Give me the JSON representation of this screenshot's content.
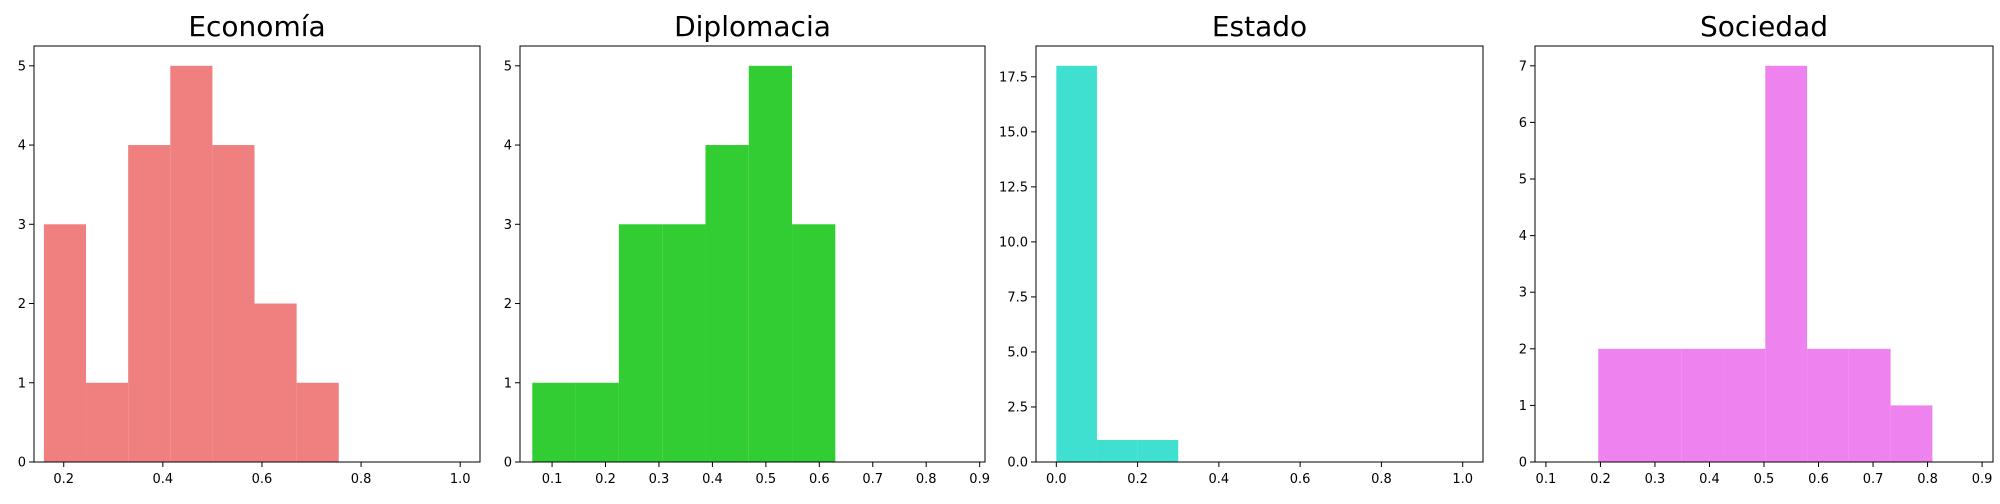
{
  "chart_data": [
    {
      "type": "bar",
      "title": "Economía",
      "color": "#f08080",
      "xlim": [
        0.14,
        1.04
      ],
      "ylim": [
        0,
        5.25
      ],
      "xticks": [
        0.2,
        0.4,
        0.6,
        0.8,
        1.0
      ],
      "xtick_labels": [
        "0.2",
        "0.4",
        "0.6",
        "0.8",
        "1.0"
      ],
      "yticks": [
        0,
        1,
        2,
        3,
        4,
        5
      ],
      "ytick_labels": [
        "0",
        "1",
        "2",
        "3",
        "4",
        "5"
      ],
      "bins": [
        {
          "x0": 0.16,
          "x1": 0.245,
          "count": 3
        },
        {
          "x0": 0.245,
          "x1": 0.33,
          "count": 1
        },
        {
          "x0": 0.33,
          "x1": 0.415,
          "count": 4
        },
        {
          "x0": 0.415,
          "x1": 0.5,
          "count": 5
        },
        {
          "x0": 0.5,
          "x1": 0.585,
          "count": 4
        },
        {
          "x0": 0.585,
          "x1": 0.67,
          "count": 2
        },
        {
          "x0": 0.67,
          "x1": 0.755,
          "count": 1
        }
      ]
    },
    {
      "type": "bar",
      "title": "Diplomacia",
      "color": "#32cd32",
      "xlim": [
        0.04,
        0.91
      ],
      "ylim": [
        0,
        5.25
      ],
      "xticks": [
        0.1,
        0.2,
        0.3,
        0.4,
        0.5,
        0.6,
        0.7,
        0.8,
        0.9
      ],
      "xtick_labels": [
        "0.1",
        "0.2",
        "0.3",
        "0.4",
        "0.5",
        "0.6",
        "0.7",
        "0.8",
        "0.9"
      ],
      "yticks": [
        0,
        1,
        2,
        3,
        4,
        5
      ],
      "ytick_labels": [
        "0",
        "1",
        "2",
        "3",
        "4",
        "5"
      ],
      "bins": [
        {
          "x0": 0.063,
          "x1": 0.144,
          "count": 1
        },
        {
          "x0": 0.144,
          "x1": 0.225,
          "count": 1
        },
        {
          "x0": 0.225,
          "x1": 0.306,
          "count": 3
        },
        {
          "x0": 0.306,
          "x1": 0.387,
          "count": 3
        },
        {
          "x0": 0.387,
          "x1": 0.468,
          "count": 4
        },
        {
          "x0": 0.468,
          "x1": 0.549,
          "count": 5
        },
        {
          "x0": 0.549,
          "x1": 0.63,
          "count": 3
        }
      ]
    },
    {
      "type": "bar",
      "title": "Estado",
      "color": "#40e0d0",
      "xlim": [
        -0.05,
        1.05
      ],
      "ylim": [
        0,
        18.9
      ],
      "xticks": [
        0.0,
        0.2,
        0.4,
        0.6,
        0.8,
        1.0
      ],
      "xtick_labels": [
        "0.0",
        "0.2",
        "0.4",
        "0.6",
        "0.8",
        "1.0"
      ],
      "yticks": [
        0,
        2.5,
        5.0,
        7.5,
        10.0,
        12.5,
        15.0,
        17.5
      ],
      "ytick_labels": [
        "0.0",
        "2.5",
        "5.0",
        "7.5",
        "10.0",
        "12.5",
        "15.0",
        "17.5"
      ],
      "bins": [
        {
          "x0": 0.0,
          "x1": 0.1,
          "count": 18
        },
        {
          "x0": 0.1,
          "x1": 0.2,
          "count": 1
        },
        {
          "x0": 0.2,
          "x1": 0.3,
          "count": 1
        }
      ]
    },
    {
      "type": "bar",
      "title": "Sociedad",
      "color": "#ee82ee",
      "xlim": [
        0.08,
        0.92
      ],
      "ylim": [
        0,
        7.35
      ],
      "xticks": [
        0.1,
        0.2,
        0.3,
        0.4,
        0.5,
        0.6,
        0.7,
        0.8,
        0.9
      ],
      "xtick_labels": [
        "0.1",
        "0.2",
        "0.3",
        "0.4",
        "0.5",
        "0.6",
        "0.7",
        "0.8",
        "0.9"
      ],
      "yticks": [
        0,
        1,
        2,
        3,
        4,
        5,
        6,
        7
      ],
      "ytick_labels": [
        "0",
        "1",
        "2",
        "3",
        "4",
        "5",
        "6",
        "7"
      ],
      "bins": [
        {
          "x0": 0.196,
          "x1": 0.2726,
          "count": 2
        },
        {
          "x0": 0.2726,
          "x1": 0.3492,
          "count": 2
        },
        {
          "x0": 0.3492,
          "x1": 0.4258,
          "count": 2
        },
        {
          "x0": 0.4258,
          "x1": 0.5024,
          "count": 2
        },
        {
          "x0": 0.5024,
          "x1": 0.579,
          "count": 7
        },
        {
          "x0": 0.579,
          "x1": 0.6556,
          "count": 2
        },
        {
          "x0": 0.6556,
          "x1": 0.7322,
          "count": 2
        },
        {
          "x0": 0.7322,
          "x1": 0.8088,
          "count": 1
        }
      ]
    }
  ]
}
